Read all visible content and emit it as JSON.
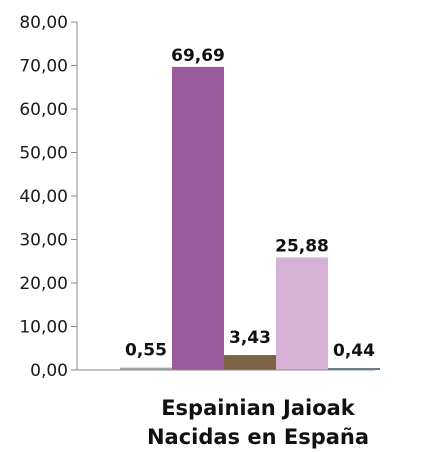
{
  "chart_data": {
    "type": "bar",
    "category": [
      "Espainian Jaioak",
      "Nacidas en España"
    ],
    "values": [
      0.55,
      69.69,
      3.43,
      25.88,
      0.44
    ],
    "value_labels": [
      "0,55",
      "69,69",
      "3,43",
      "25,88",
      "0,44"
    ],
    "colors": [
      "#a6a6a6",
      "#9b5a9c",
      "#7b6343",
      "#d6b2d6",
      "#607080"
    ],
    "ylim": [
      0,
      80
    ],
    "y_ticks": [
      0,
      10,
      20,
      30,
      40,
      50,
      60,
      70,
      80
    ],
    "y_tick_labels": [
      "0,00",
      "10,00",
      "20,00",
      "30,00",
      "40,00",
      "50,00",
      "60,00",
      "70,00",
      "80,00"
    ],
    "grid": false,
    "legend": "none"
  }
}
